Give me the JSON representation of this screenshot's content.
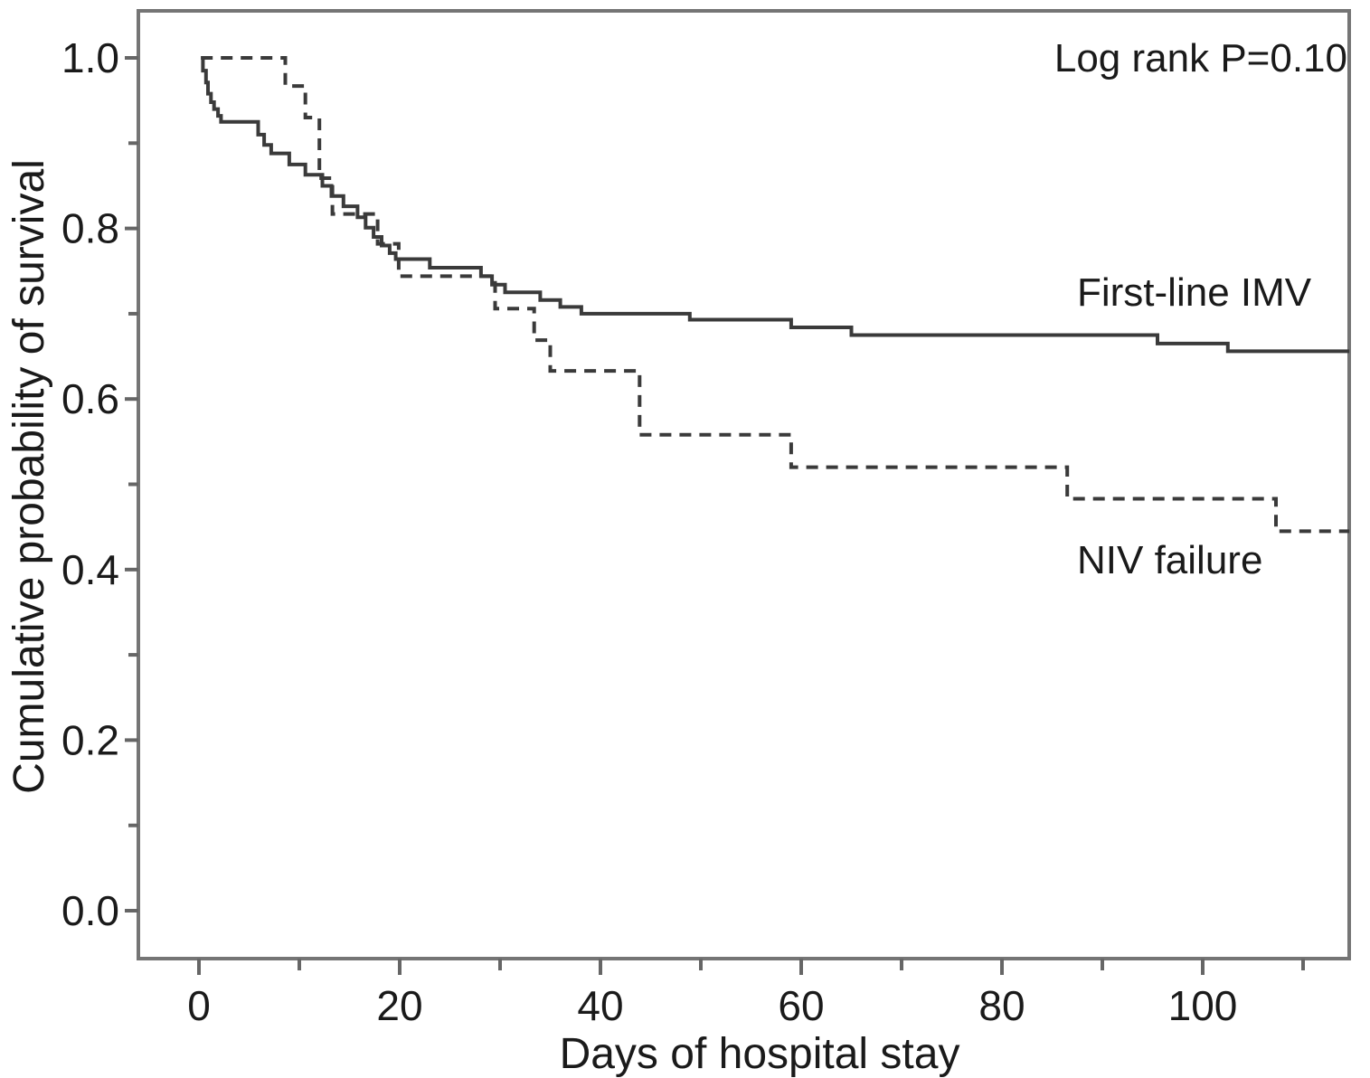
{
  "chart_data": {
    "type": "line",
    "chart_kind": "kaplan-meier-survival-step",
    "title": "",
    "annotation": "Log rank P=0.10",
    "xlabel": "Days of hospital stay",
    "ylabel": "Cumulative probability of survival",
    "xlim": [
      -6,
      114.6
    ],
    "ylim": [
      -0.056,
      1.055
    ],
    "grid": false,
    "legend_position": "on-plot-labels",
    "x_axis": {
      "title": "Days of hospital stay",
      "major_ticks": [
        {
          "value": 0,
          "label": "0"
        },
        {
          "value": 20,
          "label": "20"
        },
        {
          "value": 40,
          "label": "40"
        },
        {
          "value": 60,
          "label": "60"
        },
        {
          "value": 80,
          "label": "80"
        },
        {
          "value": 100,
          "label": "100"
        }
      ],
      "minor_ticks": [
        10,
        30,
        50,
        70,
        90,
        110
      ]
    },
    "y_axis": {
      "title": "Cumulative probability of survival",
      "major_ticks": [
        {
          "value": 1.0,
          "label": "1.0"
        },
        {
          "value": 0.8,
          "label": "0.8"
        },
        {
          "value": 0.6,
          "label": "0.6"
        },
        {
          "value": 0.4,
          "label": "0.4"
        },
        {
          "value": 0.2,
          "label": "0.2"
        },
        {
          "value": 0.0,
          "label": "0.0"
        }
      ],
      "minor_ticks": [
        0.9,
        0.7,
        0.5,
        0.3,
        0.1
      ]
    },
    "x_end": 114.6,
    "series": [
      {
        "name": "First-line IMV",
        "line_style": "solid",
        "color": "#3a3a3a",
        "points": [
          [
            0.2,
            1.0
          ],
          [
            0.4,
            0.985
          ],
          [
            0.7,
            0.971
          ],
          [
            0.9,
            0.958
          ],
          [
            1.2,
            0.948
          ],
          [
            1.5,
            0.94
          ],
          [
            1.9,
            0.932
          ],
          [
            2.2,
            0.925
          ],
          [
            5.9,
            0.91
          ],
          [
            6.5,
            0.898
          ],
          [
            7.2,
            0.888
          ],
          [
            9.0,
            0.875
          ],
          [
            10.6,
            0.863
          ],
          [
            12.3,
            0.85
          ],
          [
            13.2,
            0.838
          ],
          [
            14.4,
            0.826
          ],
          [
            15.8,
            0.813
          ],
          [
            16.6,
            0.801
          ],
          [
            17.4,
            0.79
          ],
          [
            18.2,
            0.78
          ],
          [
            19.0,
            0.771
          ],
          [
            19.6,
            0.764
          ],
          [
            23.0,
            0.754
          ],
          [
            28.1,
            0.744
          ],
          [
            29.2,
            0.734
          ],
          [
            30.5,
            0.725
          ],
          [
            34.0,
            0.716
          ],
          [
            36.0,
            0.708
          ],
          [
            38.1,
            0.7
          ],
          [
            48.9,
            0.693
          ],
          [
            59.0,
            0.684
          ],
          [
            65.0,
            0.675
          ],
          [
            95.5,
            0.665
          ],
          [
            102.5,
            0.656
          ]
        ]
      },
      {
        "name": "NIV failure",
        "line_style": "dashed",
        "color": "#3a3a3a",
        "points": [
          [
            0.2,
            1.0
          ],
          [
            8.6,
            0.967
          ],
          [
            10.6,
            0.93
          ],
          [
            12.0,
            0.859
          ],
          [
            13.3,
            0.817
          ],
          [
            17.8,
            0.782
          ],
          [
            19.9,
            0.744
          ],
          [
            29.5,
            0.706
          ],
          [
            33.4,
            0.669
          ],
          [
            35.0,
            0.633
          ],
          [
            43.9,
            0.558
          ],
          [
            59.0,
            0.52
          ],
          [
            86.5,
            0.483
          ],
          [
            107.3,
            0.445
          ]
        ]
      }
    ]
  },
  "colors": {
    "background": "#ffffff",
    "frame": "#757575",
    "tick": "#666666",
    "text": "#1a1a1a",
    "curve": "#3a3a3a"
  }
}
